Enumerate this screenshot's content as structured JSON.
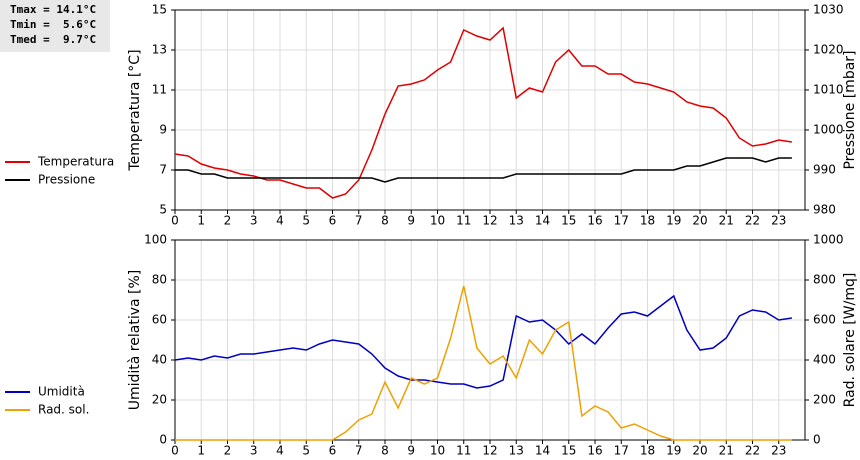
{
  "chart_data": [
    {
      "type": "line",
      "annotations": [
        "Tmax = 14.1°C",
        "Tmin =  5.6°C",
        "Tmed =  9.7°C"
      ],
      "y_label": "Temperatura [°C]",
      "y2_label": "Pressione [mbar]",
      "x": [
        0,
        0.5,
        1,
        1.5,
        2,
        2.5,
        3,
        3.5,
        4,
        4.5,
        5,
        5.5,
        6,
        6.5,
        7,
        7.5,
        8,
        8.5,
        9,
        9.5,
        10,
        10.5,
        11,
        11.5,
        12,
        12.5,
        13,
        13.5,
        14,
        14.5,
        15,
        15.5,
        16,
        16.5,
        17,
        17.5,
        18,
        18.5,
        19,
        19.5,
        20,
        20.5,
        21,
        21.5,
        22,
        22.5,
        23,
        23.5
      ],
      "xlim": [
        0,
        24
      ],
      "xticks": [
        0,
        1,
        2,
        3,
        4,
        5,
        6,
        7,
        8,
        9,
        10,
        11,
        12,
        13,
        14,
        15,
        16,
        17,
        18,
        19,
        20,
        21,
        22,
        23
      ],
      "ylim": [
        5,
        15
      ],
      "yticks": [
        5,
        7,
        9,
        11,
        13,
        15
      ],
      "y2lim": [
        980,
        1030
      ],
      "y2ticks": [
        980,
        990,
        1000,
        1010,
        1020,
        1030
      ],
      "grid": true,
      "legend": "left",
      "series": [
        {
          "name": "Temperatura",
          "color": "#e00000",
          "values": [
            7.8,
            7.7,
            7.3,
            7.1,
            7.0,
            6.8,
            6.7,
            6.5,
            6.5,
            6.3,
            6.1,
            6.1,
            5.6,
            5.8,
            6.5,
            8.0,
            9.8,
            11.2,
            11.3,
            11.5,
            12.0,
            12.4,
            14.0,
            13.7,
            13.5,
            14.1,
            10.6,
            11.1,
            10.9,
            12.4,
            13.0,
            12.2,
            12.2,
            11.8,
            11.8,
            11.4,
            11.3,
            11.1,
            10.9,
            10.4,
            10.2,
            10.1,
            9.6,
            8.6,
            8.2,
            8.3,
            8.5,
            8.4
          ]
        },
        {
          "name": "Pressione",
          "color": "#000000",
          "axis": "y2",
          "values": [
            990,
            990,
            989,
            989,
            988,
            988,
            988,
            988,
            988,
            988,
            988,
            988,
            988,
            988,
            988,
            988,
            987,
            988,
            988,
            988,
            988,
            988,
            988,
            988,
            988,
            988,
            989,
            989,
            989,
            989,
            989,
            989,
            989,
            989,
            989,
            990,
            990,
            990,
            990,
            991,
            991,
            992,
            993,
            993,
            993,
            992,
            993,
            993
          ]
        }
      ]
    },
    {
      "type": "line",
      "y_label": "Umidità relativa [%]",
      "y2_label": "Rad. solare [W/mq]",
      "x": [
        0,
        0.5,
        1,
        1.5,
        2,
        2.5,
        3,
        3.5,
        4,
        4.5,
        5,
        5.5,
        6,
        6.5,
        7,
        7.5,
        8,
        8.5,
        9,
        9.5,
        10,
        10.5,
        11,
        11.5,
        12,
        12.5,
        13,
        13.5,
        14,
        14.5,
        15,
        15.5,
        16,
        16.5,
        17,
        17.5,
        18,
        18.5,
        19,
        19.5,
        20,
        20.5,
        21,
        21.5,
        22,
        22.5,
        23,
        23.5
      ],
      "xlim": [
        0,
        24
      ],
      "xticks": [
        0,
        1,
        2,
        3,
        4,
        5,
        6,
        7,
        8,
        9,
        10,
        11,
        12,
        13,
        14,
        15,
        16,
        17,
        18,
        19,
        20,
        21,
        22,
        23
      ],
      "ylim": [
        0,
        100
      ],
      "yticks": [
        0,
        20,
        40,
        60,
        80,
        100
      ],
      "y2lim": [
        0,
        1000
      ],
      "y2ticks": [
        0,
        200,
        400,
        600,
        800,
        1000
      ],
      "grid": true,
      "legend": "left",
      "series": [
        {
          "name": "Umidità",
          "color": "#0000c0",
          "values": [
            40,
            41,
            40,
            42,
            41,
            43,
            43,
            44,
            45,
            46,
            45,
            48,
            50,
            49,
            48,
            43,
            36,
            32,
            30,
            30,
            29,
            28,
            28,
            26,
            27,
            30,
            62,
            59,
            60,
            55,
            48,
            53,
            48,
            56,
            63,
            64,
            62,
            67,
            72,
            55,
            45,
            46,
            51,
            62,
            65,
            64,
            60,
            61
          ]
        },
        {
          "name": "Rad. sol.",
          "color": "#f0a000",
          "axis": "y2",
          "values": [
            0,
            0,
            0,
            0,
            0,
            0,
            0,
            0,
            0,
            0,
            0,
            0,
            0,
            40,
            100,
            130,
            290,
            160,
            310,
            280,
            310,
            510,
            770,
            460,
            380,
            420,
            310,
            500,
            430,
            550,
            590,
            120,
            170,
            140,
            60,
            80,
            50,
            20,
            0,
            0,
            0,
            0,
            0,
            0,
            0,
            0,
            0,
            0
          ]
        }
      ]
    }
  ]
}
